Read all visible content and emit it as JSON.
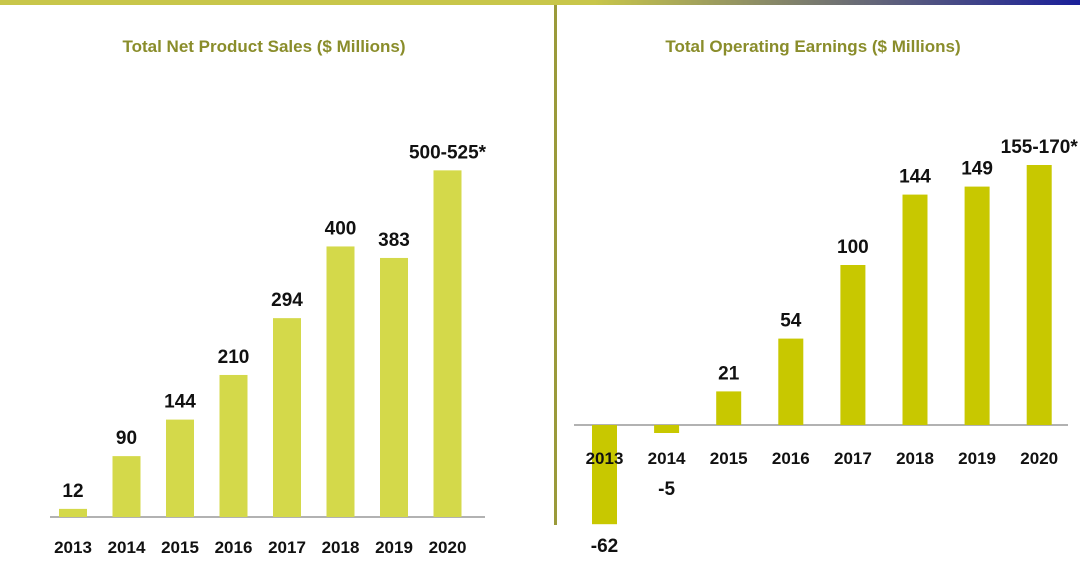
{
  "colors": {
    "bar_left": "#d4d94a",
    "bar_right": "#c8c800",
    "title": "#8a8d2b",
    "divider": "#9a9a3a",
    "axis": "#999999",
    "label": "#111111",
    "top_bar_start": "#c8c64a",
    "top_bar_end": "#1a1f9a"
  },
  "chart_data": [
    {
      "type": "bar",
      "title": "Total Net Product Sales ($ Millions)",
      "categories": [
        "2013",
        "2014",
        "2015",
        "2016",
        "2017",
        "2018",
        "2019",
        "2020"
      ],
      "values": [
        12,
        90,
        144,
        210,
        294,
        400,
        383,
        512.5
      ],
      "data_labels": [
        "12",
        "90",
        "144",
        "210",
        "294",
        "400",
        "383",
        "500-525*"
      ],
      "ylim": [
        0,
        550
      ],
      "xlabel": "",
      "ylabel": "",
      "grid": false
    },
    {
      "type": "bar",
      "title": "Total Operating Earnings ($ Millions)",
      "categories": [
        "2013",
        "2014",
        "2015",
        "2016",
        "2017",
        "2018",
        "2019",
        "2020"
      ],
      "values": [
        -62,
        -5,
        21,
        54,
        100,
        144,
        149,
        162.5
      ],
      "data_labels": [
        "-62",
        "-5",
        "21",
        "54",
        "100",
        "144",
        "149",
        "155-170*"
      ],
      "ylim": [
        -65,
        175
      ],
      "xlabel": "",
      "ylabel": "",
      "grid": false
    }
  ]
}
